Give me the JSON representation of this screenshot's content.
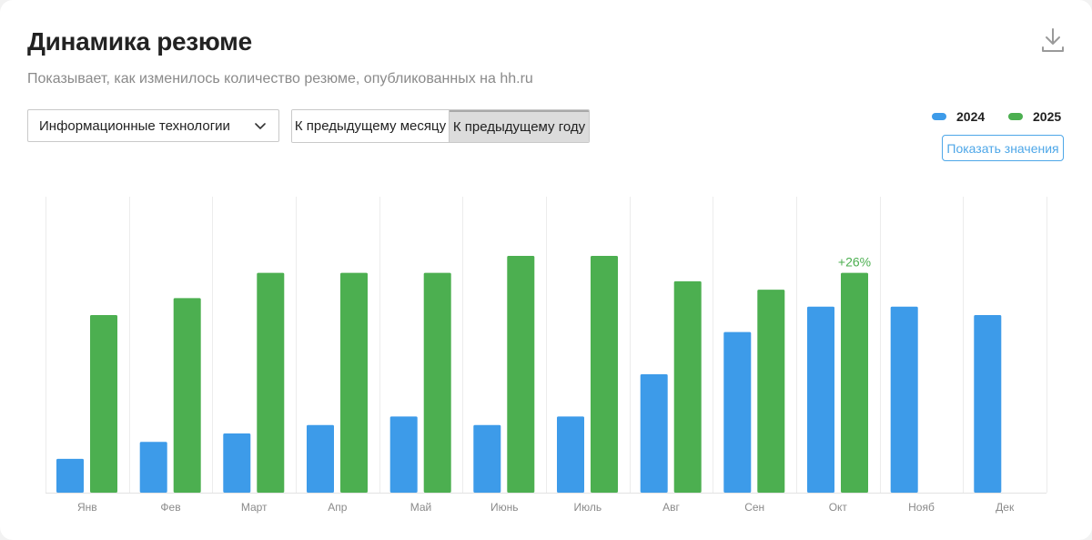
{
  "header": {
    "title": "Динамика резюме",
    "subtitle": "Показывает, как изменилось количество резюме, опубликованных на hh.ru",
    "download_icon": "download-icon"
  },
  "filters": {
    "industry_value": "Информационные технологии",
    "compare_options": [
      "К предыдущему месяцу",
      "К предыдущему году"
    ],
    "selected_compare": "К предыдущему году"
  },
  "legend": {
    "items": [
      {
        "label": "2024",
        "color": "#3d9be9"
      },
      {
        "label": "2025",
        "color": "#4caf50"
      }
    ],
    "show_values_label": "Показать значения"
  },
  "colors": {
    "series_2024": "#3d9be9",
    "series_2025": "#4caf50",
    "annotation": "#4caf50",
    "grid": "#ececec",
    "tick": "#8a8a8a"
  },
  "chart_data": {
    "type": "bar",
    "categories": [
      "Янв",
      "Фев",
      "Март",
      "Апр",
      "Май",
      "Июнь",
      "Июль",
      "Авг",
      "Сен",
      "Окт",
      "Нояб",
      "Дек"
    ],
    "series": [
      {
        "name": "2024",
        "values": [
          4,
          6,
          7,
          8,
          9,
          8,
          9,
          14,
          19,
          22,
          22,
          21
        ]
      },
      {
        "name": "2025",
        "values": [
          21,
          23,
          26,
          26,
          26,
          28,
          28,
          25,
          24,
          26,
          null,
          null
        ]
      }
    ],
    "ylim": [
      0,
      35
    ],
    "grid": "vertical",
    "legend_position": "top-right",
    "annotations": [
      {
        "category": "Окт",
        "series": "2025",
        "text": "+26%"
      }
    ]
  }
}
